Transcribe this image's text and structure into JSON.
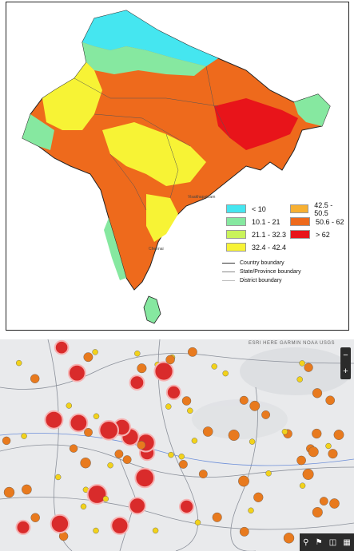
{
  "top_map": {
    "legend": [
      {
        "label": "< 10",
        "color": "#45e6f0"
      },
      {
        "label": "10.1 - 21",
        "color": "#86e8a0"
      },
      {
        "label": "21.1 - 32.3",
        "color": "#c9f35a"
      },
      {
        "label": "32.4 - 42.4",
        "color": "#f7f335"
      },
      {
        "label": "42.5 - 50.5",
        "color": "#f7b032"
      },
      {
        "label": "50.6 - 62",
        "color": "#ee6a1c"
      },
      {
        "label": "> 62",
        "color": "#e8141a"
      }
    ],
    "boundaries": [
      "Country boundary",
      "State/Province boundary",
      "District boundary"
    ],
    "city_labels": [
      "Chennai",
      "Visakhapatnam"
    ]
  },
  "bottom_map": {
    "attribution": "ESRI HERE GARMIN NOAA USGS",
    "zoom_in": "+",
    "zoom_out": "−",
    "tool_icons": [
      "pin-icon",
      "bookmark-icon",
      "layers-icon",
      "grid-icon"
    ],
    "colors": {
      "cluster_red": "#d92b2b",
      "cluster_orange": "#e87a1e",
      "marker_yellow": "#f2d21b",
      "boundary": "#8a8f99"
    }
  }
}
